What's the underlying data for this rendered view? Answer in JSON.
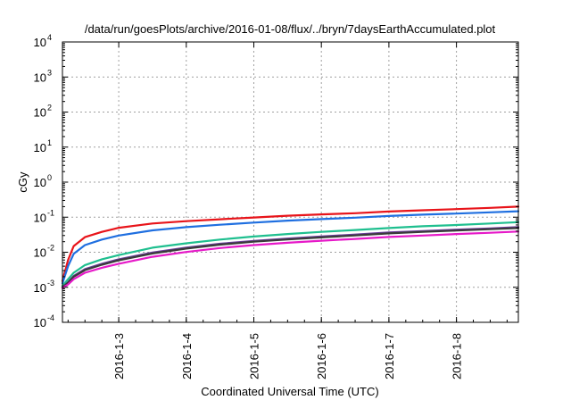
{
  "chart_data": {
    "type": "line",
    "title": "/data/run/goesPlots/archive/2016-01-08/flux/../bryn/7daysEarthAccumulated.plot",
    "xlabel": "Coordinated Universal Time (UTC)",
    "ylabel": "cGy",
    "y_scale": "log",
    "ylim_exponents": [
      -4,
      4
    ],
    "y_tick_base": "10",
    "y_tick_exponents": [
      "-4",
      "-3",
      "-2",
      "-1",
      "0",
      "1",
      "2",
      "3",
      "4"
    ],
    "xlim": [
      "2016-01-02 04:00",
      "2016-01-08 22:00"
    ],
    "x_ticks": [
      "2016-1-3",
      "2016-1-4",
      "2016-1-5",
      "2016-1-6",
      "2016-1-7",
      "2016-1-8"
    ],
    "x": [
      "2016-01-02 04:00",
      "2016-01-02 06:00",
      "2016-01-02 08:00",
      "2016-01-02 12:00",
      "2016-01-02 18:00",
      "2016-01-03 00:00",
      "2016-01-03 12:00",
      "2016-01-04 00:00",
      "2016-01-04 12:00",
      "2016-01-05 00:00",
      "2016-01-05 12:00",
      "2016-01-06 00:00",
      "2016-01-06 12:00",
      "2016-01-07 00:00",
      "2016-01-07 12:00",
      "2016-01-08 00:00",
      "2016-01-08 12:00",
      "2016-01-08 22:00"
    ],
    "grid": true,
    "legend": "none",
    "series": [
      {
        "color": "#e8141a",
        "values": [
          0.0015,
          0.006,
          0.015,
          0.027,
          0.038,
          0.05,
          0.066,
          0.077,
          0.087,
          0.098,
          0.11,
          0.12,
          0.13,
          0.145,
          0.158,
          0.17,
          0.185,
          0.2
        ]
      },
      {
        "color": "#1f6fe0",
        "values": [
          0.0013,
          0.004,
          0.009,
          0.016,
          0.023,
          0.03,
          0.042,
          0.052,
          0.061,
          0.07,
          0.08,
          0.088,
          0.097,
          0.108,
          0.118,
          0.127,
          0.138,
          0.148
        ]
      },
      {
        "color": "#1fbf8f",
        "values": [
          0.0011,
          0.0017,
          0.0026,
          0.0043,
          0.0063,
          0.0083,
          0.0135,
          0.018,
          0.023,
          0.028,
          0.033,
          0.038,
          0.043,
          0.049,
          0.055,
          0.06,
          0.066,
          0.072
        ]
      },
      {
        "color": "#6a3d9a",
        "values": [
          0.001,
          0.0014,
          0.0021,
          0.0033,
          0.0047,
          0.0063,
          0.0098,
          0.0135,
          0.0175,
          0.021,
          0.0245,
          0.028,
          0.032,
          0.0365,
          0.04,
          0.044,
          0.048,
          0.052
        ]
      },
      {
        "color": "#3a3a3a",
        "values": [
          0.001,
          0.00135,
          0.002,
          0.0031,
          0.0044,
          0.0059,
          0.0092,
          0.0127,
          0.0165,
          0.02,
          0.0232,
          0.0265,
          0.0302,
          0.0345,
          0.038,
          0.0415,
          0.0455,
          0.049
        ]
      },
      {
        "color": "#e619c8",
        "values": [
          0.00095,
          0.0012,
          0.0017,
          0.0026,
          0.0036,
          0.0047,
          0.0074,
          0.0102,
          0.0132,
          0.016,
          0.0186,
          0.0213,
          0.024,
          0.0272,
          0.03,
          0.033,
          0.036,
          0.039
        ]
      }
    ]
  }
}
